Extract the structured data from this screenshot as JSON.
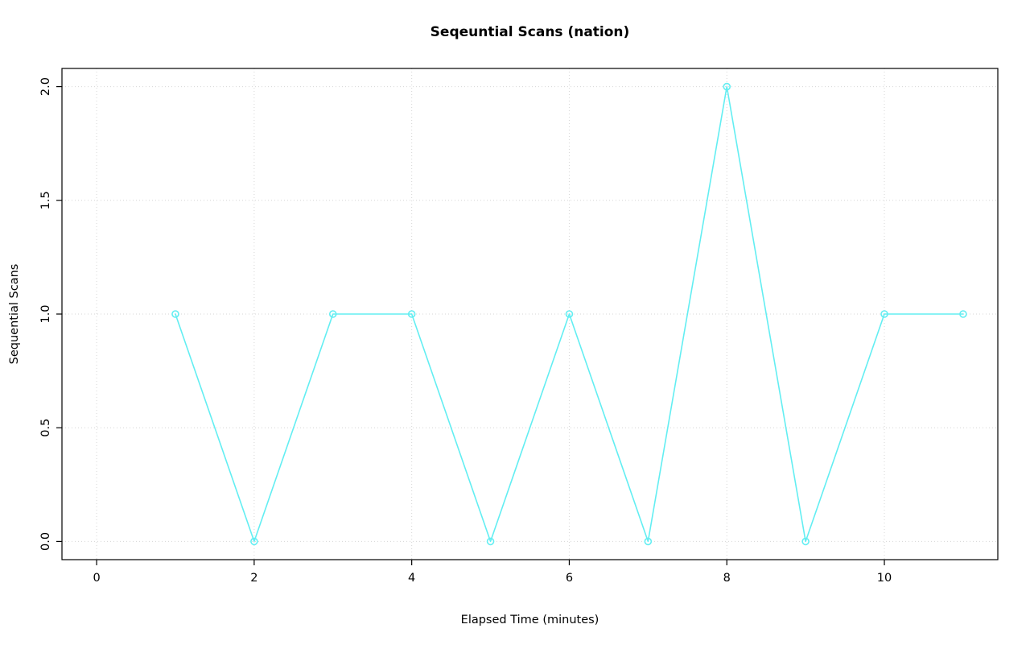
{
  "chart_data": {
    "type": "line",
    "title": "Seqeuntial Scans (nation)",
    "xlabel": "Elapsed Time (minutes)",
    "ylabel": "Sequential Scans",
    "x": [
      1,
      2,
      3,
      4,
      5,
      6,
      7,
      8,
      9,
      10,
      11
    ],
    "y": [
      1,
      0,
      1,
      1,
      0,
      1,
      0,
      2,
      0,
      1,
      1
    ],
    "xticks": [
      0,
      2,
      4,
      6,
      8,
      10
    ],
    "xtick_labels": [
      "0",
      "2",
      "4",
      "6",
      "8",
      "10"
    ],
    "yticks": [
      0.0,
      0.5,
      1.0,
      1.5,
      2.0
    ],
    "ytick_labels": [
      "0.0",
      "0.5",
      "1.0",
      "1.5",
      "2.0"
    ],
    "xlim": [
      -0.44,
      11.44
    ],
    "ylim": [
      -0.08,
      2.08
    ],
    "grid": "dotted",
    "legend": "none",
    "colors": {
      "line": "#63EEF2",
      "marker_stroke": "#63EEF2",
      "grid": "#d6d6d6",
      "axis": "#000000",
      "text": "#000000",
      "background": "#ffffff"
    }
  }
}
